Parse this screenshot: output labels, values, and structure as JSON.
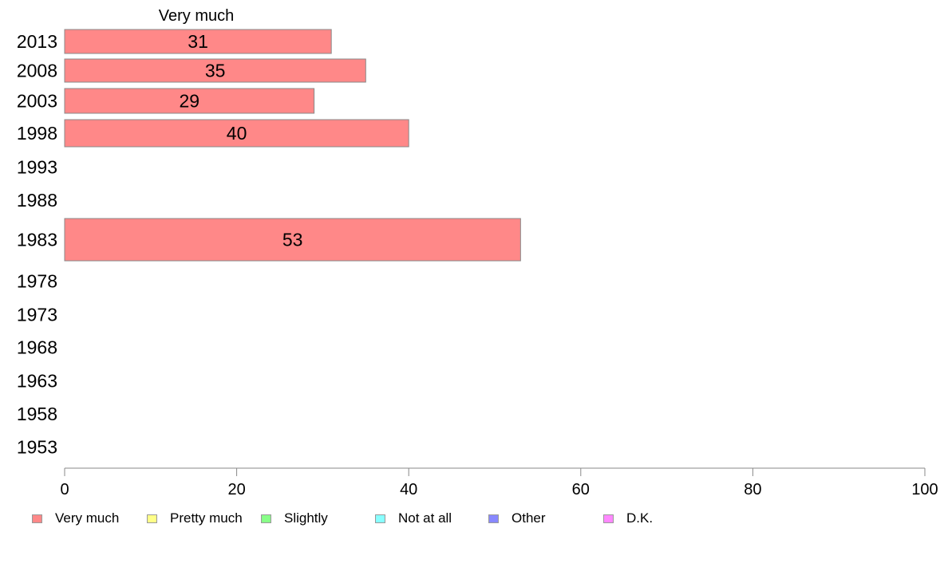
{
  "chart_data": {
    "type": "bar",
    "orientation": "horizontal",
    "stacked": true,
    "column_header": "Very much",
    "categories": [
      "2013",
      "2008",
      "2003",
      "1998",
      "1993",
      "1988",
      "1983",
      "1978",
      "1973",
      "1968",
      "1963",
      "1958",
      "1953"
    ],
    "series": [
      {
        "name": "Very much",
        "color": "#ff8888",
        "values": [
          31,
          35,
          29,
          40,
          null,
          null,
          53,
          null,
          null,
          null,
          null,
          null,
          null
        ]
      },
      {
        "name": "Pretty much",
        "color": "#ffff88",
        "values": [
          null,
          null,
          null,
          null,
          null,
          null,
          null,
          null,
          null,
          null,
          null,
          null,
          null
        ]
      },
      {
        "name": "Slightly",
        "color": "#88ff88",
        "values": [
          null,
          null,
          null,
          null,
          null,
          null,
          null,
          null,
          null,
          null,
          null,
          null,
          null
        ]
      },
      {
        "name": "Not at all",
        "color": "#88ffff",
        "values": [
          null,
          null,
          null,
          null,
          null,
          null,
          null,
          null,
          null,
          null,
          null,
          null,
          null
        ]
      },
      {
        "name": "Other",
        "color": "#8888ff",
        "values": [
          null,
          null,
          null,
          null,
          null,
          null,
          null,
          null,
          null,
          null,
          null,
          null,
          null
        ]
      },
      {
        "name": "D.K.",
        "color": "#ff88ff",
        "values": [
          null,
          null,
          null,
          null,
          null,
          null,
          null,
          null,
          null,
          null,
          null,
          null,
          null
        ]
      }
    ],
    "data_labels": [
      "31",
      "35",
      "29",
      "40",
      "",
      "",
      "53",
      "",
      "",
      "",
      "",
      "",
      ""
    ],
    "xlim": [
      0,
      100
    ],
    "xticks": [
      "0",
      "20",
      "40",
      "60",
      "80",
      "100"
    ],
    "grid": false,
    "legend_position": "bottom"
  }
}
